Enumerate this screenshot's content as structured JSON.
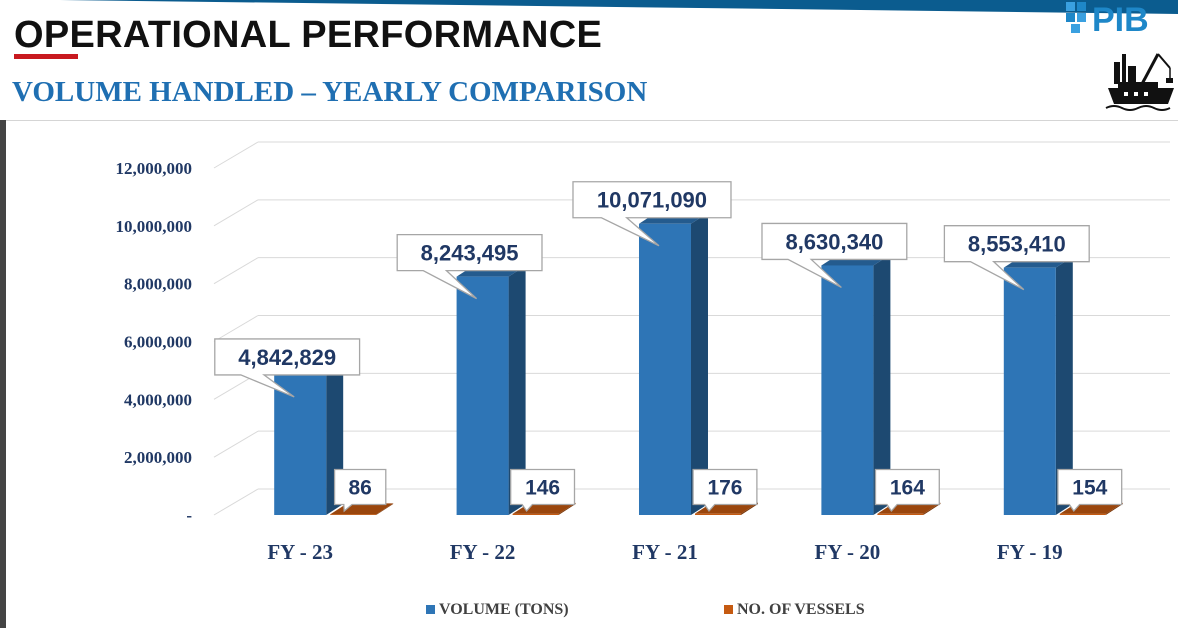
{
  "header": {
    "title": "OPERATIONAL PERFORMANCE",
    "subtitle": "VOLUME HANDLED – YEARLY COMPARISON",
    "logo_text": "PIB",
    "brand_color": "#0b5c8f",
    "accent_red": "#c8191f"
  },
  "chart_data": {
    "type": "bar",
    "title": "VOLUME HANDLED – YEARLY COMPARISON",
    "categories": [
      "FY - 23",
      "FY - 22",
      "FY - 21",
      "FY - 20",
      "FY - 19"
    ],
    "series": [
      {
        "name": "VOLUME (TONS)",
        "values": [
          4842829,
          8243495,
          10071090,
          8630340,
          8553410
        ],
        "color": "#2e75b6"
      },
      {
        "name": "NO. OF VESSELS",
        "values": [
          86,
          146,
          176,
          164,
          154
        ],
        "color": "#c55a11"
      }
    ],
    "data_labels": {
      "volume": [
        "4,842,829",
        "8,243,495",
        "10,071,090",
        "8,630,340",
        "8,553,410"
      ],
      "vessels": [
        "86",
        "146",
        "176",
        "164",
        "154"
      ]
    },
    "yaxis": {
      "ticks": [
        0,
        2000000,
        4000000,
        6000000,
        8000000,
        10000000,
        12000000
      ],
      "tick_labels": [
        "-",
        "2,000,000",
        "4,000,000",
        "6,000,000",
        "8,000,000",
        "10,000,000",
        "12,000,000"
      ]
    },
    "ylim": [
      0,
      12000000
    ],
    "grid": true,
    "legend_position": "bottom",
    "label_color": "#203864"
  }
}
